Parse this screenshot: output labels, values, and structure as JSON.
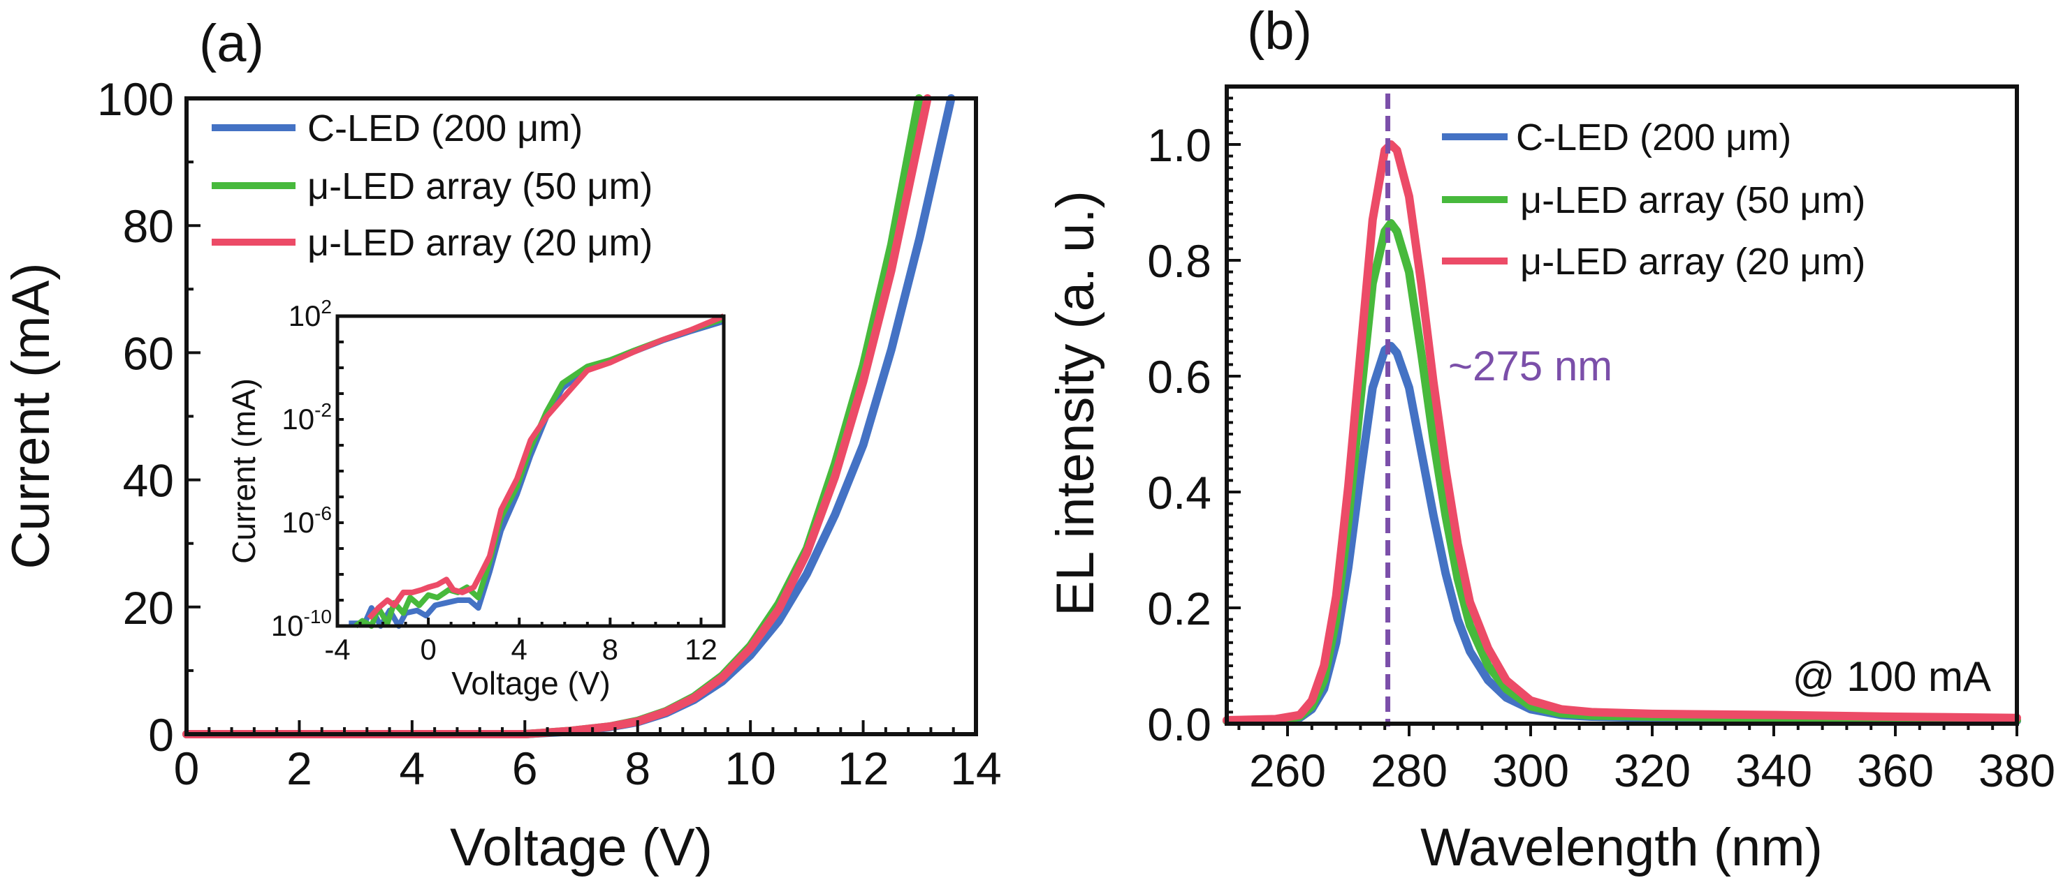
{
  "chart_data": [
    {
      "id": "a",
      "type": "line",
      "panel_label": "(a)",
      "title": "",
      "xlabel": "Voltage (V)",
      "ylabel": "Current (mA)",
      "xlim": [
        0,
        14
      ],
      "ylim": [
        0,
        100
      ],
      "xticks": [
        0,
        2,
        4,
        6,
        8,
        10,
        12,
        14
      ],
      "yticks": [
        0,
        20,
        40,
        60,
        80,
        100
      ],
      "xtick_labels": [
        "0",
        "2",
        "4",
        "6",
        "8",
        "10",
        "12",
        "14"
      ],
      "ytick_labels": [
        "0",
        "20",
        "40",
        "60",
        "80",
        "100"
      ],
      "grid": false,
      "legend_position": "top-left",
      "series": [
        {
          "name": "C-LED (200 μm)",
          "color": "#4472C4",
          "x": [
            0,
            6,
            6.8,
            7.5,
            8,
            8.5,
            9,
            9.5,
            10,
            10.5,
            11,
            11.5,
            12,
            12.5,
            13,
            13.56
          ],
          "y": [
            0,
            0,
            0.4,
            1.1,
            1.9,
            3.3,
            5.4,
            8.3,
            12.4,
            17.8,
            25.2,
            34.5,
            45.5,
            60.5,
            78,
            100
          ]
        },
        {
          "name": "μ-LED array (50 μm)",
          "color": "#47B93C",
          "x": [
            0,
            6,
            6.8,
            7.5,
            8,
            8.5,
            9,
            9.5,
            10,
            10.5,
            11,
            11.5,
            12,
            12.5,
            12.99
          ],
          "y": [
            0,
            0,
            0.5,
            1.2,
            2.1,
            3.6,
            5.9,
            9.2,
            13.9,
            20.5,
            29.2,
            42.5,
            58,
            77,
            100
          ]
        },
        {
          "name": "μ-LED array (20 μm)",
          "color": "#EC4B67",
          "x": [
            0,
            6,
            6.8,
            7.5,
            8,
            8.5,
            9,
            9.5,
            10,
            10.5,
            11,
            11.5,
            12,
            12.5,
            13.14
          ],
          "y": [
            0,
            0,
            0.5,
            1.2,
            2.0,
            3.5,
            5.7,
            8.9,
            13.5,
            19.6,
            28.5,
            40.5,
            55.5,
            73,
            100
          ]
        }
      ],
      "legend": [
        {
          "label": "C-LED (200 μm)",
          "color": "#4472C4"
        },
        {
          "label": "μ-LED array (50 μm)",
          "color": "#47B93C"
        },
        {
          "label": "μ-LED array (20 μm)",
          "color": "#EC4B67"
        }
      ],
      "inset": {
        "type": "line",
        "xlabel": "Voltage (V)",
        "ylabel": "Current (mA)",
        "yscale": "log",
        "xlim": [
          -4,
          13
        ],
        "ylim_log10": [
          -10,
          2
        ],
        "xticks": [
          -4,
          0,
          4,
          8,
          12
        ],
        "xtick_labels": [
          "-4",
          "0",
          "4",
          "8",
          "12"
        ],
        "yticks_log10": [
          2,
          -2,
          -6,
          -10
        ],
        "ytick_labels": [
          {
            "base": "10",
            "exp": "2"
          },
          {
            "base": "10",
            "exp": "-2"
          },
          {
            "base": "10",
            "exp": "-6"
          },
          {
            "base": "10",
            "exp": "-10"
          }
        ],
        "series": [
          {
            "name": "C-LED (200 μm)",
            "color": "#4472C4",
            "x": [
              -3.5,
              -2.8,
              -2.5,
              -2.1,
              -1.7,
              -1.3,
              -1.0,
              -0.5,
              -0.1,
              0.3,
              0.8,
              1.3,
              1.8,
              2.2,
              2.7,
              3.2,
              3.9,
              4.5,
              5.2,
              5.9,
              7,
              8,
              9,
              10.3,
              11.5,
              13
            ],
            "y": [
              -9.9,
              -9.9,
              -9.3,
              -10.1,
              -9.4,
              -10.2,
              -9.5,
              -9.4,
              -9.6,
              -9.2,
              -9.1,
              -9.0,
              -9.0,
              -9.3,
              -7.9,
              -6.3,
              -4.9,
              -3.4,
              -1.9,
              -0.8,
              0.0,
              0.25,
              0.6,
              1.05,
              1.4,
              1.8
            ]
          },
          {
            "name": "μ-LED array (50 μm)",
            "color": "#47B93C",
            "x": [
              -3.2,
              -2.9,
              -2.5,
              -2.2,
              -1.8,
              -1.5,
              -1.1,
              -0.8,
              -0.4,
              0.0,
              0.4,
              0.9,
              1.3,
              1.7,
              2.2,
              2.7,
              3.2,
              3.9,
              4.5,
              5.2,
              5.9,
              7,
              8,
              9,
              10.3,
              11.5,
              13
            ],
            "y": [
              -10.3,
              -9.8,
              -10.2,
              -9.3,
              -9.9,
              -9.1,
              -9.5,
              -8.9,
              -9.2,
              -8.8,
              -8.9,
              -8.6,
              -8.7,
              -8.5,
              -8.9,
              -7.5,
              -5.8,
              -4.6,
              -3.1,
              -1.7,
              -0.6,
              0.05,
              0.3,
              0.65,
              1.08,
              1.45,
              1.9
            ]
          },
          {
            "name": "μ-LED array (20 μm)",
            "color": "#EC4B67",
            "x": [
              -2.6,
              -2.2,
              -1.8,
              -1.5,
              -1.1,
              -0.7,
              -0.3,
              0.0,
              0.4,
              0.8,
              1.1,
              1.5,
              2.0,
              2.3,
              2.7,
              3.2,
              3.9,
              4.5,
              5.2,
              5.7,
              7,
              8,
              9,
              10.3,
              11.5,
              13
            ],
            "y": [
              -9.7,
              -9.3,
              -9.0,
              -9.2,
              -8.7,
              -8.7,
              -8.6,
              -8.5,
              -8.4,
              -8.2,
              -8.6,
              -8.7,
              -8.5,
              -8.0,
              -7.3,
              -5.5,
              -4.3,
              -2.8,
              -1.9,
              -1.4,
              -0.1,
              0.2,
              0.6,
              1.08,
              1.45,
              2.0
            ]
          }
        ]
      }
    },
    {
      "id": "b",
      "type": "line",
      "panel_label": "(b)",
      "title": "",
      "xlabel": "Wavelength (nm)",
      "ylabel": "EL intensity (a. u.)",
      "xlim": [
        250,
        380
      ],
      "ylim": [
        0,
        1.1
      ],
      "xticks": [
        260,
        280,
        300,
        320,
        340,
        360,
        380
      ],
      "yticks": [
        0.0,
        0.2,
        0.4,
        0.6,
        0.8,
        1.0
      ],
      "xtick_labels": [
        "260",
        "280",
        "300",
        "320",
        "340",
        "360",
        "380"
      ],
      "ytick_labels": [
        "0.0",
        "0.2",
        "0.4",
        "0.6",
        "0.8",
        "1.0"
      ],
      "grid": false,
      "legend_position": "top-right",
      "series": [
        {
          "name": "C-LED (200 μm)",
          "color": "#4472C4",
          "x": [
            250,
            258,
            262,
            264,
            266,
            268,
            270,
            272,
            274,
            276,
            277,
            278,
            280,
            282,
            284,
            286,
            288,
            290,
            293,
            296,
            300,
            305,
            310,
            320,
            340,
            360,
            380
          ],
          "y": [
            0.005,
            0.006,
            0.01,
            0.025,
            0.06,
            0.14,
            0.27,
            0.43,
            0.58,
            0.645,
            0.652,
            0.64,
            0.58,
            0.47,
            0.36,
            0.26,
            0.18,
            0.125,
            0.075,
            0.045,
            0.025,
            0.015,
            0.012,
            0.01,
            0.008,
            0.006,
            0.005
          ]
        },
        {
          "name": "μ-LED array (50 μm)",
          "color": "#47B93C",
          "x": [
            250,
            258,
            262,
            264,
            266,
            268,
            270,
            272,
            274,
            276,
            277,
            278,
            280,
            282,
            284,
            286,
            288,
            290,
            293,
            296,
            300,
            305,
            310,
            320,
            340,
            360,
            380
          ],
          "y": [
            0.005,
            0.006,
            0.012,
            0.03,
            0.075,
            0.18,
            0.35,
            0.56,
            0.76,
            0.85,
            0.864,
            0.85,
            0.78,
            0.64,
            0.49,
            0.36,
            0.25,
            0.17,
            0.1,
            0.06,
            0.03,
            0.018,
            0.014,
            0.012,
            0.01,
            0.008,
            0.006
          ]
        },
        {
          "name": "μ-LED array (20 μm)",
          "color": "#EC4B67",
          "x": [
            250,
            258,
            262,
            264,
            266,
            268,
            270,
            272,
            274,
            276,
            277,
            278,
            280,
            282,
            284,
            286,
            288,
            290,
            293,
            296,
            300,
            305,
            310,
            320,
            340,
            360,
            380
          ],
          "y": [
            0.006,
            0.008,
            0.015,
            0.04,
            0.1,
            0.22,
            0.41,
            0.64,
            0.87,
            0.99,
            1.0,
            0.99,
            0.91,
            0.76,
            0.59,
            0.44,
            0.31,
            0.21,
            0.13,
            0.075,
            0.04,
            0.025,
            0.02,
            0.017,
            0.015,
            0.012,
            0.01
          ]
        }
      ],
      "legend": [
        {
          "label": "C-LED (200 μm)",
          "color": "#4472C4"
        },
        {
          "label": "μ-LED array (50 μm)",
          "color": "#47B93C"
        },
        {
          "label": "μ-LED array (20 μm)",
          "color": "#EC4B67"
        }
      ],
      "annotations": [
        {
          "text": "~275 nm",
          "color": "#7B4FA9",
          "x": 283,
          "y": 0.67
        },
        {
          "text": "@ 100 mA",
          "color": "#111111",
          "x": 376,
          "y": 0.07
        }
      ],
      "reference_line": {
        "orientation": "vertical",
        "x": 276.5,
        "style": "dashed",
        "color": "#7B4FA9"
      }
    }
  ]
}
